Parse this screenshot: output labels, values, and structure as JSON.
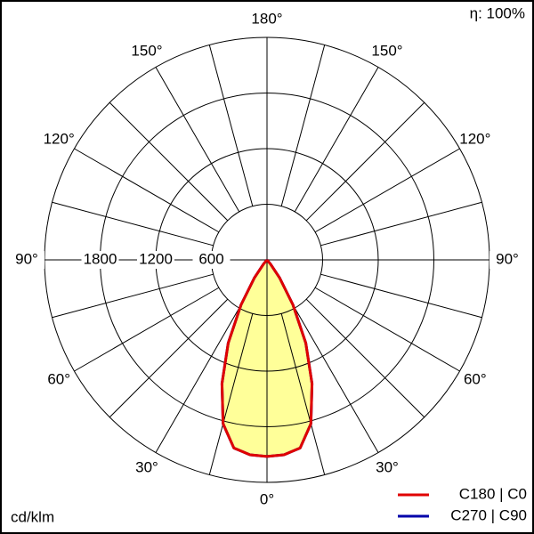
{
  "chart_data": {
    "type": "polar",
    "efficiency": "η: 100%",
    "unit_label": "cd/klm",
    "rlim": [
      0,
      2400
    ],
    "rticks": [
      600,
      1200,
      1800
    ],
    "angle_ticks": [
      {
        "value": 0,
        "label": "0°"
      },
      {
        "value": 30,
        "label": "30°"
      },
      {
        "value": 60,
        "label": "60°"
      },
      {
        "value": 90,
        "label": "90°"
      },
      {
        "value": 120,
        "label": "120°"
      },
      {
        "value": 150,
        "label": "150°"
      },
      {
        "value": 180,
        "label": "180°"
      }
    ],
    "x": [
      -45,
      -40,
      -35,
      -30,
      -25,
      -20,
      -15,
      -10,
      -5,
      0,
      5,
      10,
      15,
      20,
      25,
      30,
      35,
      40,
      45
    ],
    "series": [
      {
        "name": "C270 | C90",
        "color": "#0000aa",
        "values": [
          0,
          60,
          240,
          560,
          990,
          1420,
          1830,
          2060,
          2110,
          2120,
          2110,
          2060,
          1830,
          1420,
          990,
          560,
          240,
          60,
          0
        ]
      },
      {
        "name": "C180 | C0",
        "color": "#e00000",
        "fill": "#ffff99",
        "values": [
          0,
          60,
          240,
          560,
          990,
          1420,
          1830,
          2060,
          2110,
          2120,
          2110,
          2060,
          1830,
          1420,
          990,
          560,
          240,
          60,
          0
        ]
      }
    ]
  }
}
